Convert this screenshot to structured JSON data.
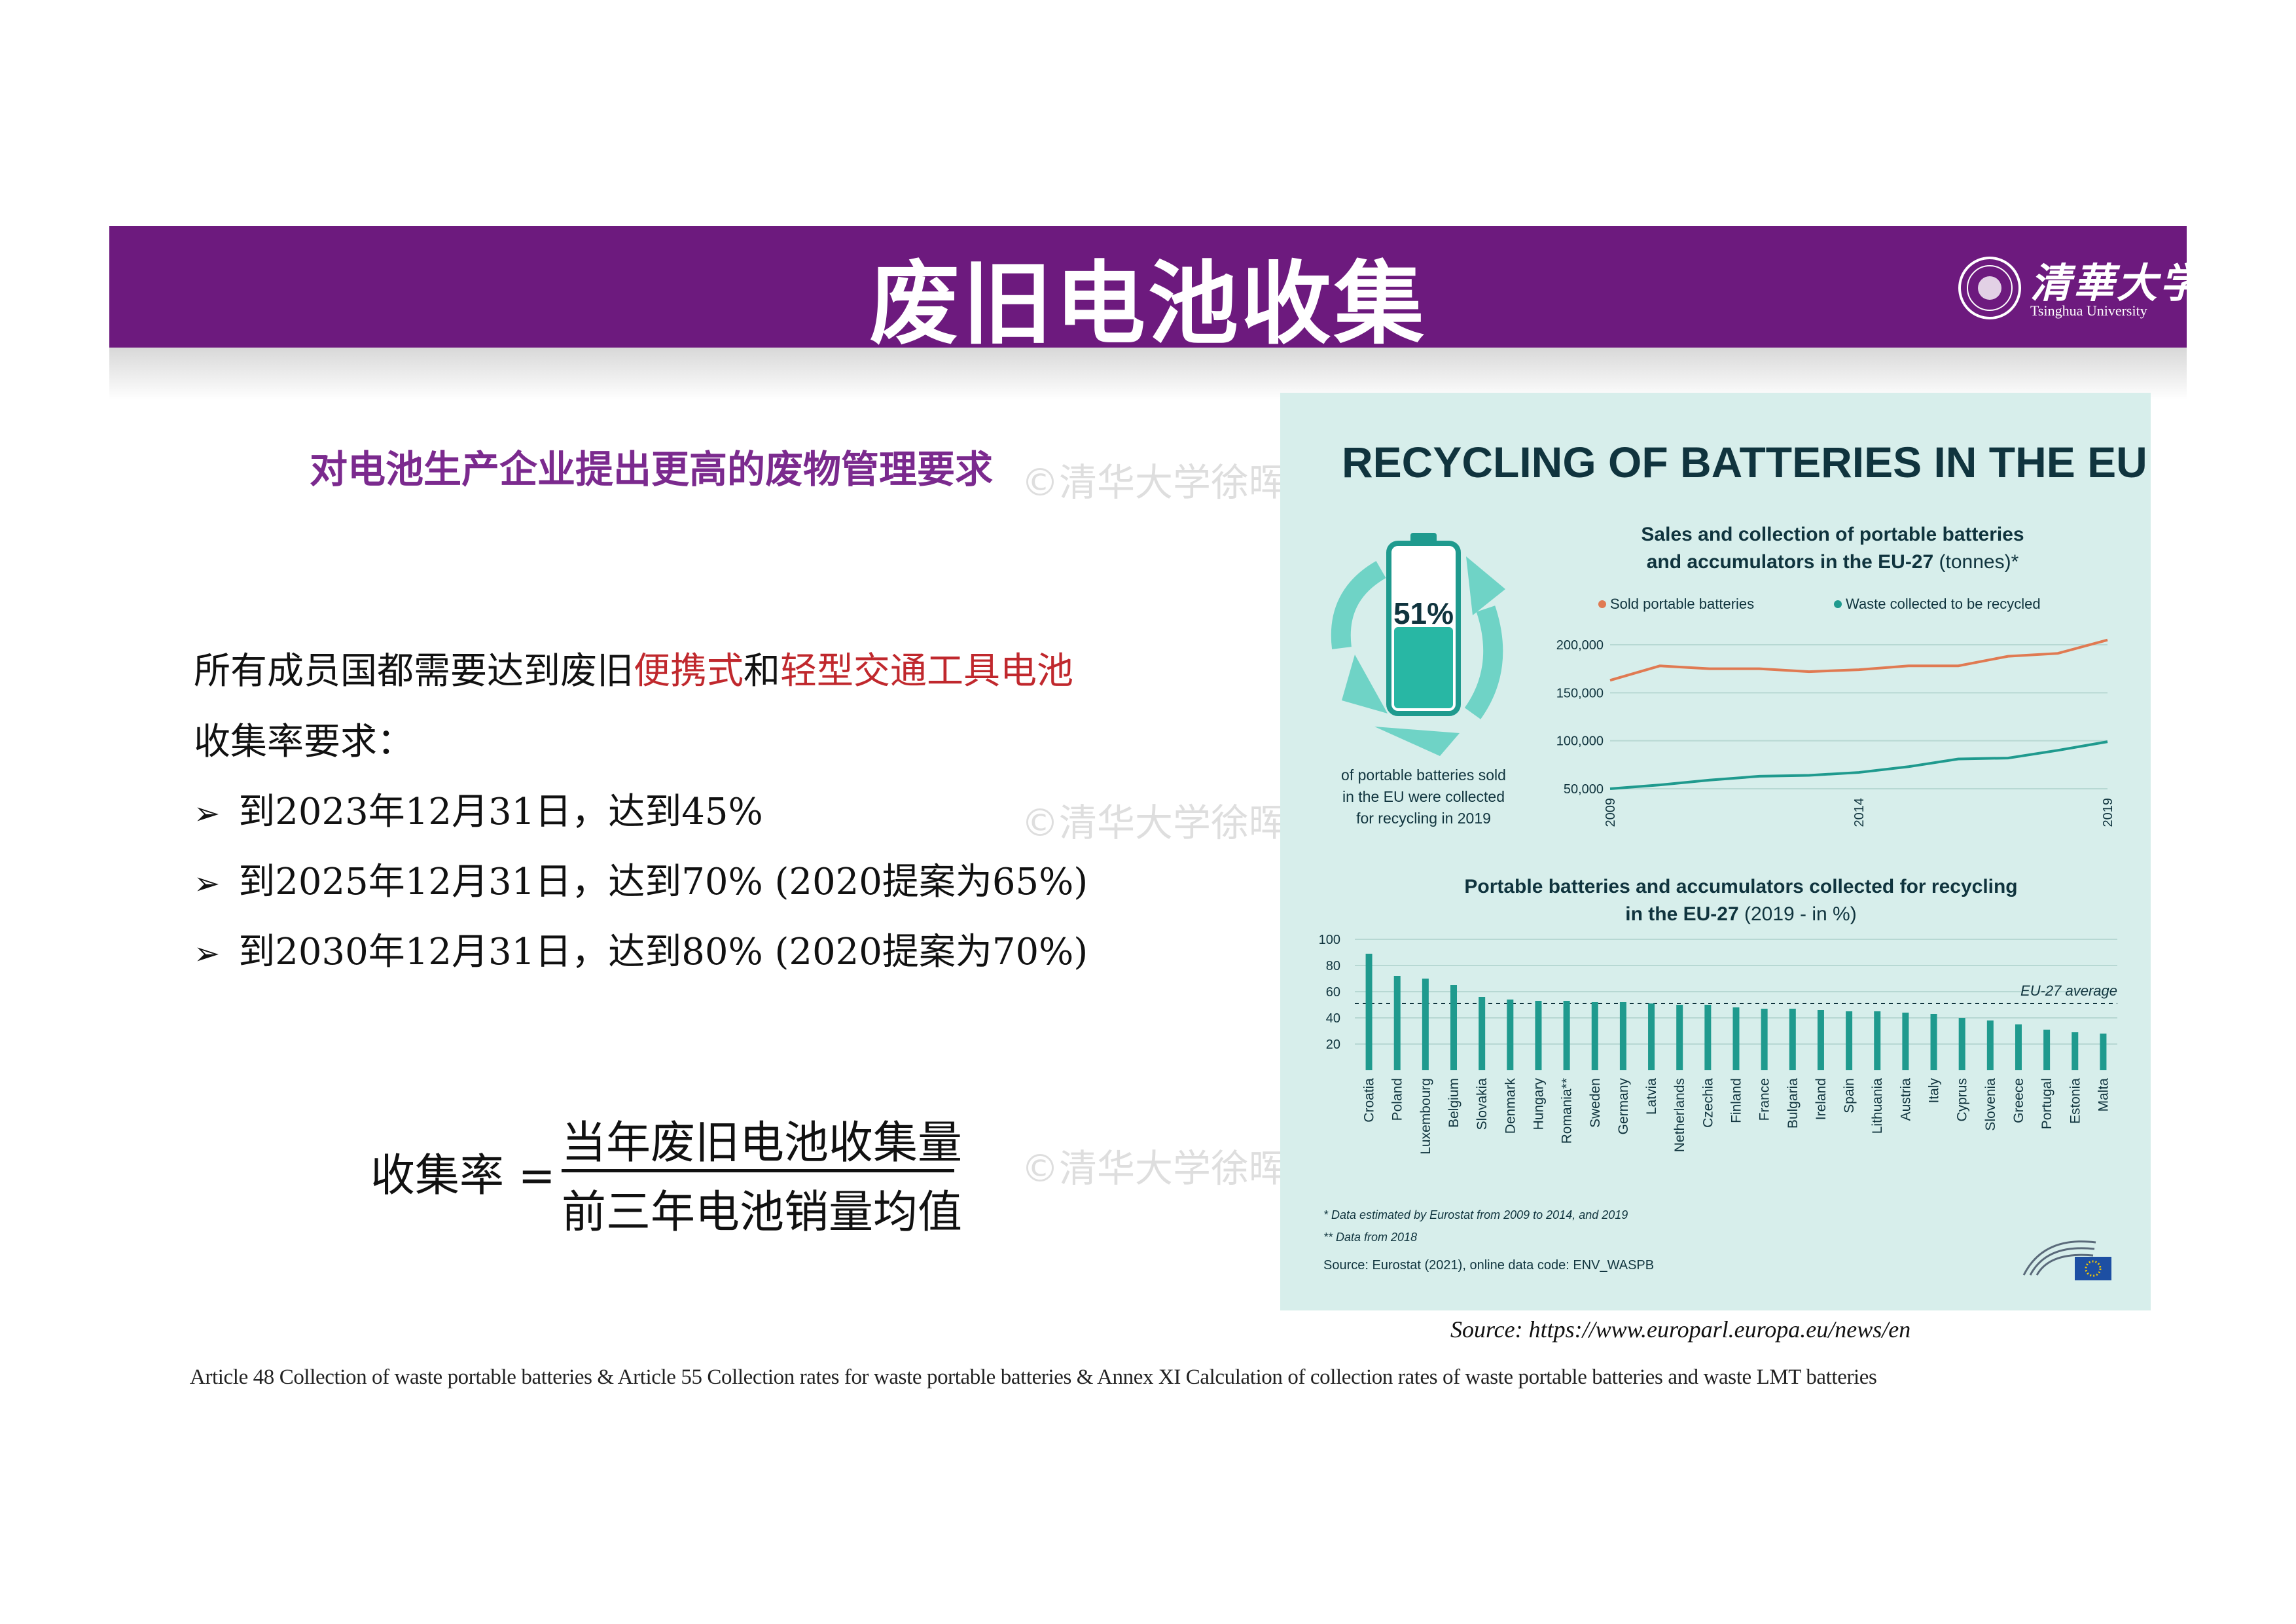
{
  "slide": {
    "title": "废旧电池收集",
    "logo": {
      "cn": "清華大学",
      "en": "Tsinghua University"
    },
    "subhead": "对电池生产企业提出更高的废物管理要求",
    "watermark": "©清华大学徐晖",
    "requirement": {
      "part1": "所有成员国都需要达到废旧",
      "red1": "便携式",
      "part2": "和",
      "red2": "轻型交通工具电池",
      "line2": "收集率要求："
    },
    "bullets": [
      "到2023年12月31日，达到45%",
      "到2025年12月31日，达到70% (2020提案为65%)",
      "到2030年12月31日，达到80% (2020提案为70%)"
    ],
    "formula": {
      "lhs": "收集率 =",
      "numerator": "当年废旧电池收集量",
      "denominator": "前三年电池销量均值"
    },
    "source": "Source: https://www.europarl.europa.eu/news/en",
    "article": "Article 48 Collection  of waste portable batteries & Article 55  Collection  rates for waste portable batteries & Annex XI  Calculation  of collection  rates of waste portable batteries and waste LMT batteries",
    "colors": {
      "banner": "#6d1a7e",
      "subhead": "#7b2a8e",
      "highlight": "#c0282d",
      "panel": "#d7eeeb",
      "teal": "#1f9a8e",
      "orange": "#e07a52"
    }
  },
  "infographic": {
    "title": "RECYCLING OF BATTERIES IN THE EU",
    "big_percent": "51%",
    "big_percent_desc": [
      "of portable batteries sold",
      "in the EU were collected",
      "for recycling in 2019"
    ],
    "notes": [
      "* Data estimated by Eurostat from 2009 to 2014, and 2019",
      "** Data from 2018"
    ],
    "inner_source": "Source: Eurostat (2021), online data code: ENV_WASPB"
  },
  "chart_data": [
    {
      "type": "line",
      "title": "Sales and collection of portable batteries",
      "subtitle_bold": "and accumulators in the EU-27",
      "subtitle_light": "(tonnes)*",
      "x": [
        2009,
        2010,
        2011,
        2012,
        2013,
        2014,
        2015,
        2016,
        2017,
        2018,
        2019
      ],
      "x_tick_labels": [
        "2009",
        "2014",
        "2019"
      ],
      "ylim": [
        50000,
        200000
      ],
      "y_tick_labels": [
        "200,000",
        "150,000",
        "100,000",
        "50,000"
      ],
      "series": [
        {
          "name": "Sold portable batteries",
          "color": "#e07a52",
          "values": [
            163000,
            178000,
            175000,
            175000,
            172000,
            174000,
            178000,
            178000,
            188000,
            191000,
            205000
          ]
        },
        {
          "name": "Waste collected to be recycled",
          "color": "#1f9a8e",
          "values": [
            50000,
            54000,
            59000,
            63000,
            64000,
            67000,
            73000,
            81000,
            82000,
            90000,
            99000
          ]
        }
      ],
      "legend_position": "top"
    },
    {
      "type": "bar",
      "title_line1": "Portable batteries and accumulators collected for recycling",
      "title_line2_bold": "in the EU-27",
      "title_line2_light": "(2019 - in %)",
      "categories": [
        "Croatia",
        "Poland",
        "Luxembourg",
        "Belgium",
        "Slovakia",
        "Denmark",
        "Hungary",
        "Romania**",
        "Sweden",
        "Germany",
        "Latvia",
        "Netherlands",
        "Czechia",
        "Finland",
        "France",
        "Bulgaria",
        "Ireland",
        "Spain",
        "Lithuania",
        "Austria",
        "Italy",
        "Cyprus",
        "Slovenia",
        "Greece",
        "Portugal",
        "Estonia",
        "Malta"
      ],
      "values": [
        89,
        72,
        70,
        65,
        56,
        54,
        53,
        53,
        52,
        52,
        51,
        50,
        50,
        48,
        47,
        47,
        46,
        45,
        45,
        44,
        43,
        40,
        38,
        35,
        31,
        29,
        28
      ],
      "ylim": [
        0,
        100
      ],
      "y_tick_labels": [
        "100",
        "80",
        "60",
        "40",
        "20"
      ],
      "reference_line": {
        "label": "EU-27 average",
        "value": 51
      },
      "color": "#1f9a8e",
      "grid": true
    }
  ]
}
